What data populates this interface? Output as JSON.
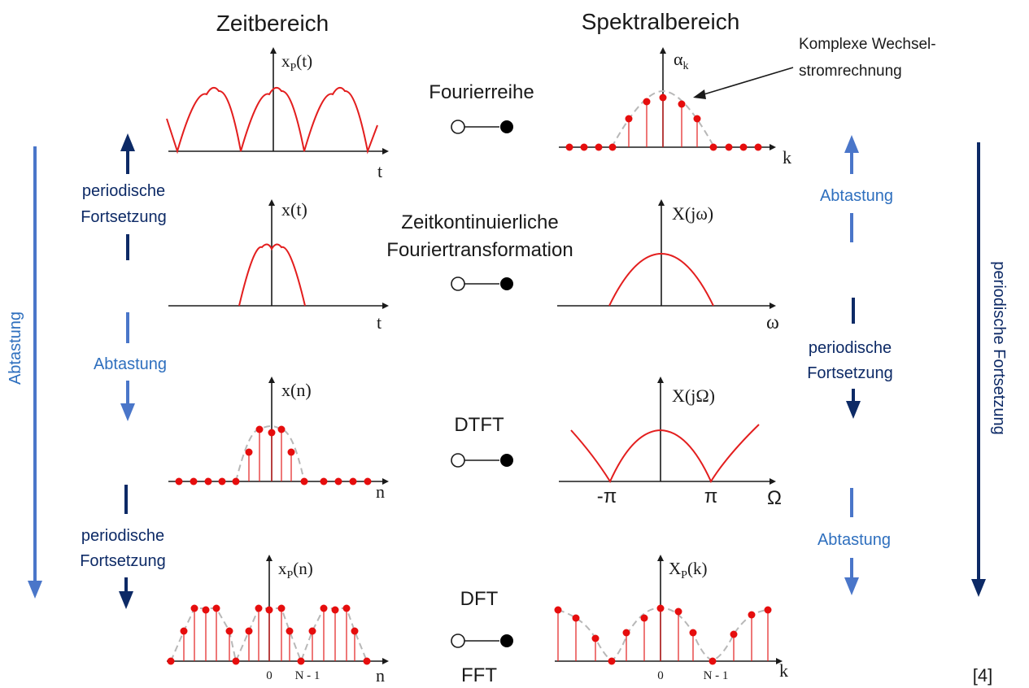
{
  "colors": {
    "signal": "#e31e1e",
    "dot": "#e60d0d",
    "light_blue": "#4a76c9",
    "dark_blue": "#0d2a66",
    "label_light_blue": "#2e6fbe",
    "label_dark_blue": "#0d2a66",
    "dashed_envelope": "#b8b8b8"
  },
  "headers": {
    "time_domain": "Zeitbereich",
    "spectral_domain": "Spektralbereich"
  },
  "transforms": {
    "fourier_series": "Fourierreihe",
    "ctft_line1": "Zeitkontinuierliche",
    "ctft_line2": "Fouriertransformation",
    "dtft": "DTFT",
    "dft": "DFT",
    "fft": "FFT"
  },
  "annotation": {
    "line1": "Komplexe Wechsel-",
    "line2": "stromrechnung"
  },
  "side_labels": {
    "left_periodic_line1": "periodische",
    "left_periodic_line2": "Fortsetzung",
    "left_sampling": "Abtastung",
    "left_outer": "Abtastung",
    "right_sampling_top": "Abtastung",
    "right_periodic_line1": "periodische",
    "right_periodic_line2": "Fortsetzung",
    "right_sampling_bottom": "Abtastung",
    "right_outer": "periodische Fortsetzung"
  },
  "plots": {
    "xp_t": {
      "ylabel": "x",
      "ysub": "P",
      "yarg": "(t)",
      "xlabel": "t"
    },
    "alpha_k": {
      "ylabel": "α",
      "ysub": "k",
      "xlabel": "k"
    },
    "x_t": {
      "ylabel": "x(t)",
      "xlabel": "t"
    },
    "X_jw": {
      "ylabel": "X(jω)",
      "xlabel": "ω"
    },
    "x_n": {
      "ylabel": "x(n)",
      "xlabel": "n"
    },
    "X_jOmega": {
      "ylabel": "X(jΩ)",
      "xlabel": "Ω",
      "tick_neg": "-π",
      "tick_pos": "π"
    },
    "xp_n": {
      "ylabel": "x",
      "ysub": "P",
      "yarg": "(n)",
      "xlabel": "n",
      "tick_zero": "0",
      "tick_n1": "N - 1"
    },
    "Xp_k": {
      "ylabel": "X",
      "ysub": "P",
      "yarg": "(k)",
      "xlabel": "k",
      "tick_zero": "0",
      "tick_n1": "N - 1"
    }
  },
  "reference": "[4]"
}
